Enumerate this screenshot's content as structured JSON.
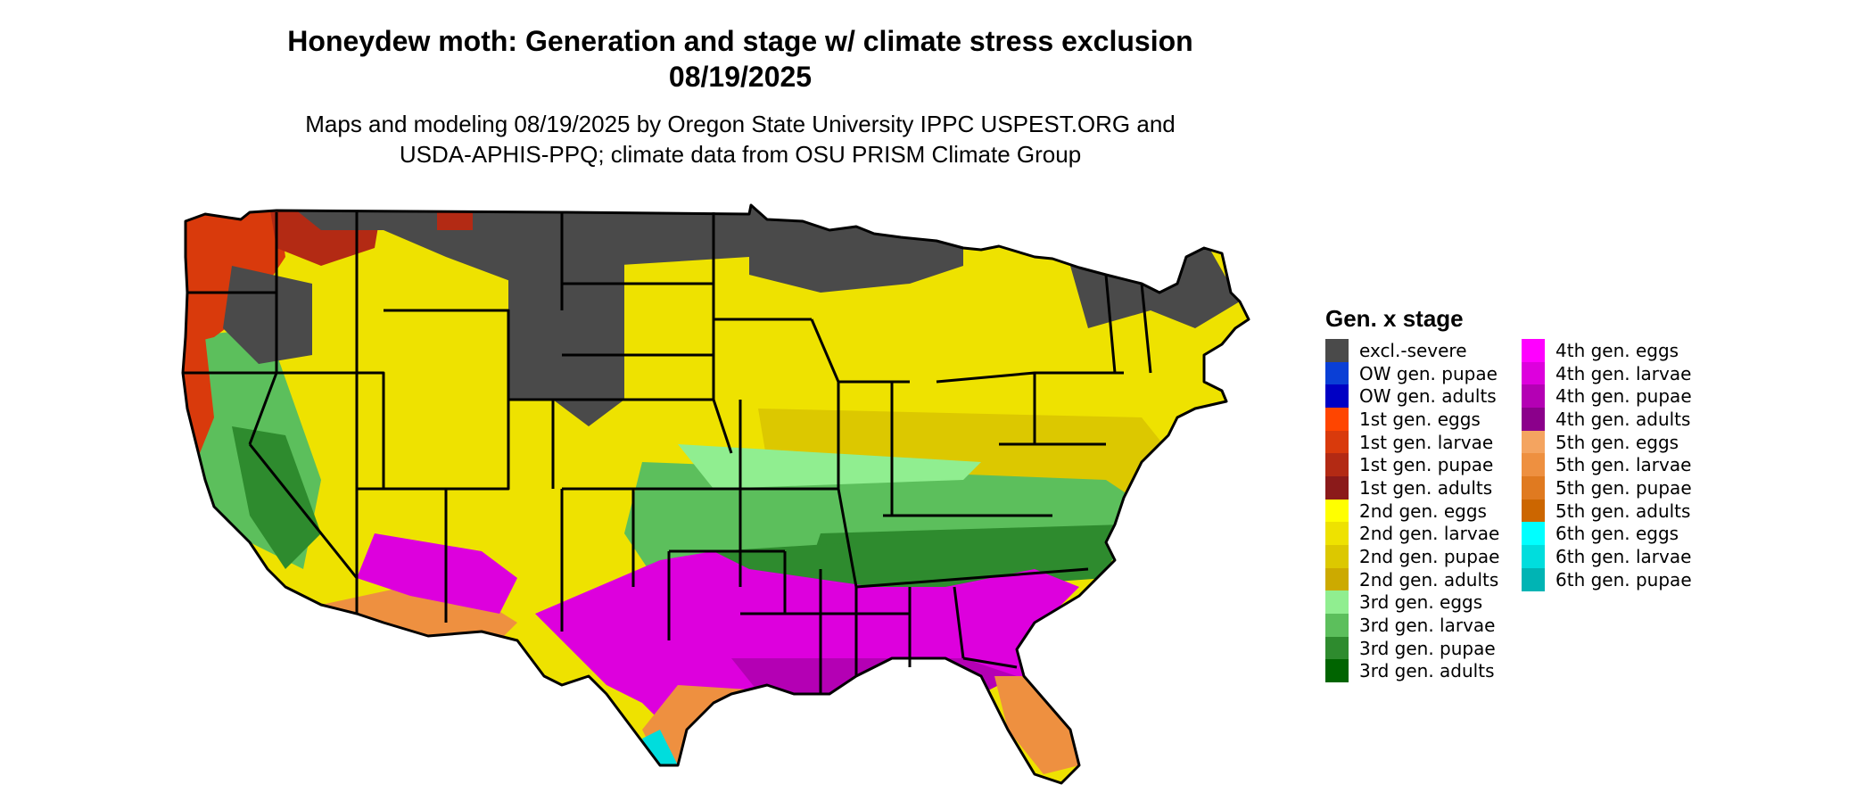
{
  "title": {
    "line1": "Honeydew moth: Generation and stage w/ climate stress exclusion",
    "line2": "08/19/2025"
  },
  "subtitle": {
    "line1": "Maps and modeling 08/19/2025 by Oregon State University IPPC USPEST.ORG and",
    "line2": "USDA-APHIS-PPQ; climate data from OSU PRISM Climate Group"
  },
  "legend": {
    "title": "Gen. x stage",
    "col1": [
      {
        "label": "excl.-severe",
        "color": "#4a4a4a"
      },
      {
        "label": "OW gen. pupae",
        "color": "#0a3fd6"
      },
      {
        "label": "OW gen. adults",
        "color": "#0000c4"
      },
      {
        "label": "1st gen. eggs",
        "color": "#ff4500"
      },
      {
        "label": "1st gen. larvae",
        "color": "#d93a0c"
      },
      {
        "label": "1st gen. pupae",
        "color": "#b32a14"
      },
      {
        "label": "1st gen. adults",
        "color": "#8b1a1a"
      },
      {
        "label": "2nd gen. eggs",
        "color": "#ffff00"
      },
      {
        "label": "2nd gen. larvae",
        "color": "#eee200"
      },
      {
        "label": "2nd gen. pupae",
        "color": "#dcc800"
      },
      {
        "label": "2nd gen. adults",
        "color": "#ccaa00"
      },
      {
        "label": "3rd gen. eggs",
        "color": "#90ee90"
      },
      {
        "label": "3rd gen. larvae",
        "color": "#5cbf5c"
      },
      {
        "label": "3rd gen. pupae",
        "color": "#2e8b2e"
      },
      {
        "label": "3rd gen. adults",
        "color": "#006400"
      }
    ],
    "col2": [
      {
        "label": "4th gen. eggs",
        "color": "#ff00ff"
      },
      {
        "label": "4th gen. larvae",
        "color": "#dd00dd"
      },
      {
        "label": "4th gen. pupae",
        "color": "#b400b4"
      },
      {
        "label": "4th gen. adults",
        "color": "#8b008b"
      },
      {
        "label": "5th gen. eggs",
        "color": "#f4a460"
      },
      {
        "label": "5th gen. larvae",
        "color": "#ee9040"
      },
      {
        "label": "5th gen. pupae",
        "color": "#e07a20"
      },
      {
        "label": "5th gen. adults",
        "color": "#cc6600"
      },
      {
        "label": "6th gen. eggs",
        "color": "#00ffff"
      },
      {
        "label": "6th gen. larvae",
        "color": "#00dddd"
      },
      {
        "label": "6th gen. pupae",
        "color": "#00b4b4"
      }
    ]
  }
}
